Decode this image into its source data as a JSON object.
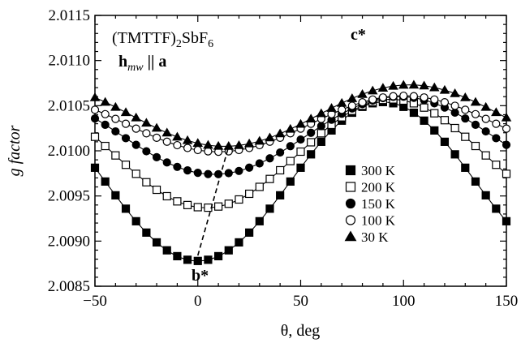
{
  "chart_data": {
    "type": "scatter",
    "xlabel": "θ, deg",
    "ylabel": "g factor",
    "xlim": [
      -50,
      150
    ],
    "ylim": [
      2.0085,
      2.0115
    ],
    "xticks": [
      "−50",
      "0",
      "50",
      "100",
      "150"
    ],
    "yticks": [
      "2.0085",
      "2.0090",
      "2.0095",
      "2.0100",
      "2.0105",
      "2.0110",
      "2.0115"
    ],
    "annotations": {
      "compound_pre": "(TMTTF)",
      "compound_sub": "2",
      "compound_mid": "SbF",
      "compound_sub2": "6",
      "field_h": "h",
      "field_sub": "mw",
      "field_rest": " || a",
      "c_star": "c*",
      "b_star": "b*"
    },
    "legend_position": "center-right",
    "series": [
      {
        "name": "300 K",
        "marker": "square-filled",
        "model": {
          "center": 2.00966,
          "amplitude": 0.00088,
          "phase_deg": 90
        }
      },
      {
        "name": "200 K",
        "marker": "square-open",
        "model": {
          "center": 2.00997,
          "amplitude": 0.0006,
          "phase_deg": 94
        }
      },
      {
        "name": "150 K",
        "marker": "circle-filled",
        "model": {
          "center": 2.01017,
          "amplitude": 0.00043,
          "phase_deg": 98
        }
      },
      {
        "name": "100 K",
        "marker": "circle-open",
        "model": {
          "center": 2.0103,
          "amplitude": 0.00031,
          "phase_deg": 100
        }
      },
      {
        "name": "30 K",
        "marker": "triangle-filled",
        "model": {
          "center": 2.01039,
          "amplitude": 0.00034,
          "phase_deg": 103
        }
      }
    ],
    "x": [
      -50,
      -45,
      -40,
      -35,
      -30,
      -25,
      -20,
      -15,
      -10,
      -5,
      0,
      5,
      10,
      15,
      20,
      25,
      30,
      35,
      40,
      45,
      50,
      55,
      60,
      65,
      70,
      75,
      80,
      85,
      90,
      95,
      100,
      105,
      110,
      115,
      120,
      125,
      130,
      135,
      140,
      145,
      150
    ],
    "dashed_guide": {
      "from": [
        0,
        2.00884
      ],
      "to": [
        15,
        2.01005
      ]
    }
  }
}
